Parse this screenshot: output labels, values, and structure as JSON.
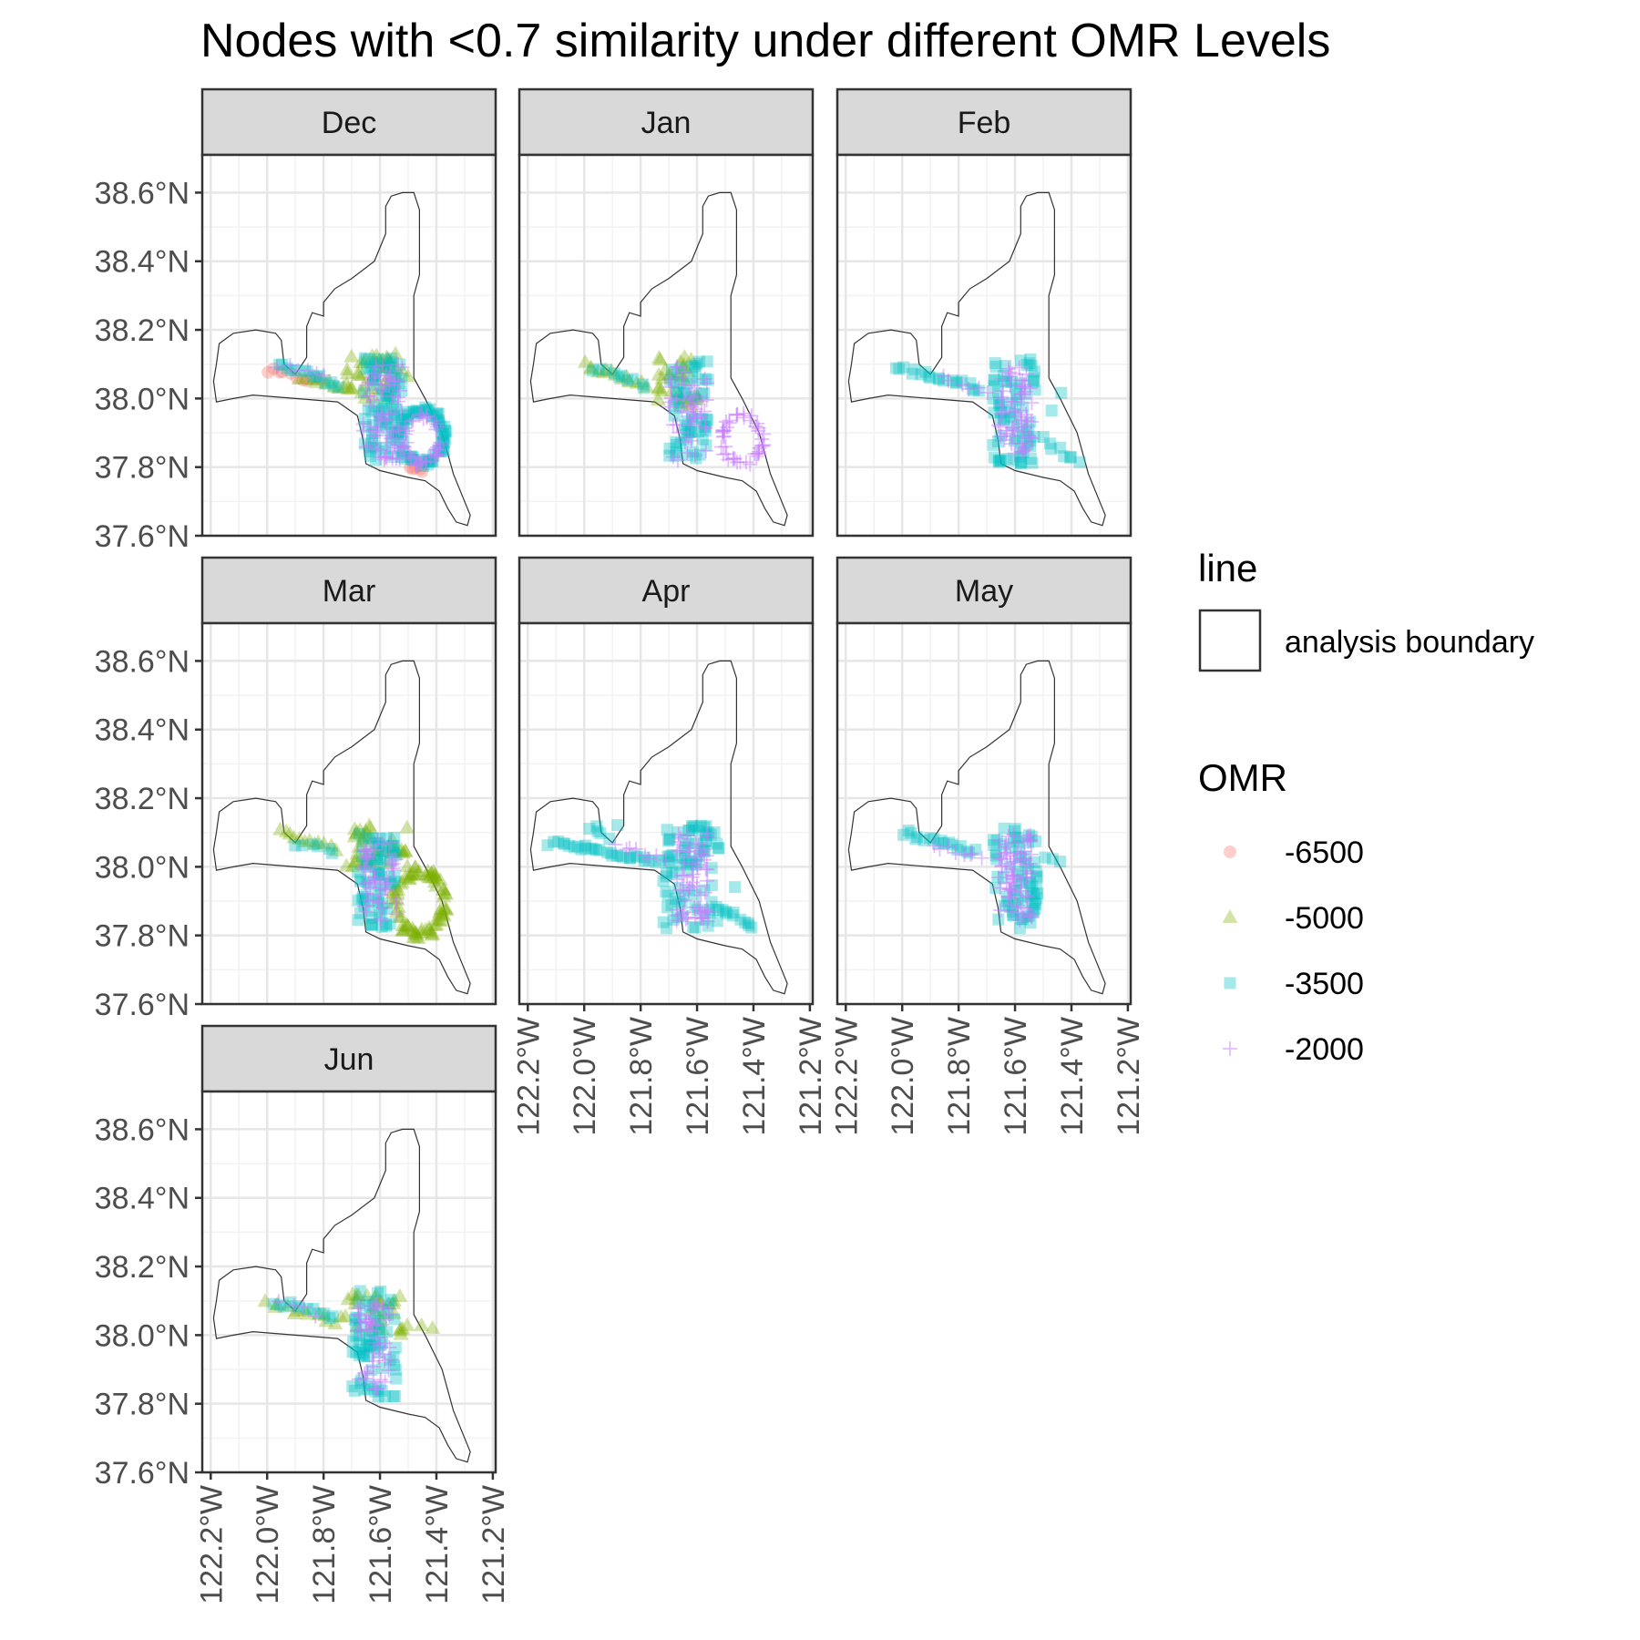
{
  "chart_data": {
    "type": "scatter",
    "title": "Nodes with <0.7 similarity under different OMR Levels",
    "panels": [
      "Dec",
      "Jan",
      "Feb",
      "Mar",
      "Apr",
      "May",
      "Jun"
    ],
    "x_ticks": [
      "122.2°W",
      "122.0°W",
      "121.8°W",
      "121.6°W",
      "121.4°W",
      "121.2°W"
    ],
    "y_ticks": [
      "38.6°N",
      "38.4°N",
      "38.2°N",
      "38.0°N",
      "37.8°N",
      "37.6°N"
    ],
    "xlim": [
      -122.23,
      -121.19
    ],
    "ylim": [
      37.6,
      38.71
    ],
    "legend": {
      "line_title": "line",
      "line_label": "analysis boundary",
      "omr_title": "OMR",
      "omr_entries": [
        {
          "label": "-6500",
          "shape": "circle",
          "color": "#F8766D"
        },
        {
          "label": "-5000",
          "shape": "triangle",
          "color": "#7CAE00"
        },
        {
          "label": "-3500",
          "shape": "square",
          "color": "#00BFC4"
        },
        {
          "label": "-2000",
          "shape": "plus",
          "color": "#C77CFF"
        }
      ]
    },
    "boundary": [
      [
        -121.95,
        38.17
      ],
      [
        -121.97,
        38.19
      ],
      [
        -122.04,
        38.2
      ],
      [
        -122.12,
        38.19
      ],
      [
        -122.17,
        38.16
      ],
      [
        -122.18,
        38.1
      ],
      [
        -122.19,
        38.05
      ],
      [
        -122.18,
        37.99
      ],
      [
        -122.12,
        38.0
      ],
      [
        -122.05,
        38.01
      ],
      [
        -121.9,
        38.0
      ],
      [
        -121.75,
        37.99
      ],
      [
        -121.68,
        37.95
      ],
      [
        -121.66,
        37.88
      ],
      [
        -121.65,
        37.81
      ],
      [
        -121.6,
        37.79
      ],
      [
        -121.5,
        37.77
      ],
      [
        -121.44,
        37.76
      ],
      [
        -121.39,
        37.73
      ],
      [
        -121.36,
        37.68
      ],
      [
        -121.33,
        37.64
      ],
      [
        -121.29,
        37.63
      ],
      [
        -121.28,
        37.66
      ],
      [
        -121.3,
        37.7
      ],
      [
        -121.34,
        37.78
      ],
      [
        -121.38,
        37.9
      ],
      [
        -121.44,
        38.0
      ],
      [
        -121.48,
        38.06
      ],
      [
        -121.48,
        38.16
      ],
      [
        -121.48,
        38.3
      ],
      [
        -121.46,
        38.36
      ],
      [
        -121.46,
        38.45
      ],
      [
        -121.46,
        38.55
      ],
      [
        -121.48,
        38.6
      ],
      [
        -121.52,
        38.6
      ],
      [
        -121.56,
        38.59
      ],
      [
        -121.58,
        38.56
      ],
      [
        -121.58,
        38.48
      ],
      [
        -121.62,
        38.4
      ],
      [
        -121.7,
        38.35
      ],
      [
        -121.76,
        38.32
      ],
      [
        -121.8,
        38.28
      ],
      [
        -121.8,
        38.24
      ],
      [
        -121.84,
        38.25
      ],
      [
        -121.86,
        38.21
      ],
      [
        -121.86,
        38.12
      ],
      [
        -121.9,
        38.07
      ],
      [
        -121.94,
        38.1
      ],
      [
        -121.95,
        38.17
      ]
    ],
    "clusters": {
      "Dec": [
        {
          "omr": "-6500",
          "shapes": [
            {
              "kind": "line",
              "x0": -122.0,
              "y0": 38.08,
              "x1": -121.82,
              "y1": 38.05,
              "n": 10
            },
            {
              "kind": "box",
              "x0": -121.5,
              "y0": 37.78,
              "x1": -121.44,
              "y1": 37.82,
              "n": 6
            }
          ]
        },
        {
          "omr": "-5000",
          "shapes": [
            {
              "kind": "line",
              "x0": -121.88,
              "y0": 38.06,
              "x1": -121.7,
              "y1": 38.03,
              "n": 12
            },
            {
              "kind": "box",
              "x0": -121.72,
              "y0": 38.0,
              "x1": -121.5,
              "y1": 38.13,
              "n": 40
            }
          ]
        },
        {
          "omr": "-3500",
          "shapes": [
            {
              "kind": "line",
              "x0": -121.96,
              "y0": 38.1,
              "x1": -121.74,
              "y1": 38.04,
              "n": 14
            },
            {
              "kind": "box",
              "x0": -121.66,
              "y0": 37.82,
              "x1": -121.52,
              "y1": 38.12,
              "n": 80
            },
            {
              "kind": "ring",
              "x0": -121.54,
              "y0": 37.8,
              "x1": -121.36,
              "y1": 37.98,
              "n": 70
            }
          ]
        },
        {
          "omr": "-2000",
          "shapes": [
            {
              "kind": "box",
              "x0": -121.66,
              "y0": 37.82,
              "x1": -121.52,
              "y1": 38.1,
              "n": 70
            },
            {
              "kind": "ring",
              "x0": -121.52,
              "y0": 37.8,
              "x1": -121.38,
              "y1": 37.96,
              "n": 40
            },
            {
              "kind": "line",
              "x0": -121.96,
              "y0": 38.1,
              "x1": -121.8,
              "y1": 38.06,
              "n": 6
            }
          ]
        }
      ],
      "Jan": [
        {
          "omr": "-5000",
          "shapes": [
            {
              "kind": "line",
              "x0": -122.0,
              "y0": 38.1,
              "x1": -121.78,
              "y1": 38.04,
              "n": 14
            },
            {
              "kind": "box",
              "x0": -121.74,
              "y0": 37.98,
              "x1": -121.58,
              "y1": 38.13,
              "n": 30
            }
          ]
        },
        {
          "omr": "-3500",
          "shapes": [
            {
              "kind": "line",
              "x0": -121.96,
              "y0": 38.09,
              "x1": -121.78,
              "y1": 38.04,
              "n": 10
            },
            {
              "kind": "box",
              "x0": -121.7,
              "y0": 37.82,
              "x1": -121.56,
              "y1": 38.12,
              "n": 60
            }
          ]
        },
        {
          "omr": "-2000",
          "shapes": [
            {
              "kind": "box",
              "x0": -121.7,
              "y0": 37.82,
              "x1": -121.56,
              "y1": 38.1,
              "n": 50
            },
            {
              "kind": "ring",
              "x0": -121.52,
              "y0": 37.8,
              "x1": -121.36,
              "y1": 37.96,
              "n": 45
            }
          ]
        }
      ],
      "Feb": [
        {
          "omr": "-3500",
          "shapes": [
            {
              "kind": "line",
              "x0": -122.02,
              "y0": 38.09,
              "x1": -121.72,
              "y1": 38.03,
              "n": 20
            },
            {
              "kind": "box",
              "x0": -121.68,
              "y0": 37.81,
              "x1": -121.52,
              "y1": 38.12,
              "n": 70
            },
            {
              "kind": "line",
              "x0": -121.5,
              "y0": 37.88,
              "x1": -121.38,
              "y1": 37.81,
              "n": 8
            },
            {
              "kind": "line",
              "x0": -121.48,
              "y0": 37.96,
              "x1": -121.44,
              "y1": 38.02,
              "n": 2
            }
          ]
        },
        {
          "omr": "-2000",
          "shapes": [
            {
              "kind": "box",
              "x0": -121.66,
              "y0": 37.84,
              "x1": -121.54,
              "y1": 38.1,
              "n": 60
            },
            {
              "kind": "line",
              "x0": -121.86,
              "y0": 38.06,
              "x1": -121.7,
              "y1": 38.02,
              "n": 6
            }
          ]
        }
      ],
      "Mar": [
        {
          "omr": "-5000",
          "shapes": [
            {
              "kind": "line",
              "x0": -121.96,
              "y0": 38.1,
              "x1": -121.76,
              "y1": 38.05,
              "n": 12
            },
            {
              "kind": "box",
              "x0": -121.72,
              "y0": 38.0,
              "x1": -121.5,
              "y1": 38.13,
              "n": 40
            },
            {
              "kind": "ring",
              "x0": -121.56,
              "y0": 37.79,
              "x1": -121.36,
              "y1": 38.0,
              "n": 80
            }
          ]
        },
        {
          "omr": "-3500",
          "shapes": [
            {
              "kind": "box",
              "x0": -121.68,
              "y0": 37.82,
              "x1": -121.54,
              "y1": 38.1,
              "n": 70
            },
            {
              "kind": "line",
              "x0": -121.9,
              "y0": 38.07,
              "x1": -121.76,
              "y1": 38.04,
              "n": 6
            }
          ]
        },
        {
          "omr": "-2000",
          "shapes": [
            {
              "kind": "box",
              "x0": -121.66,
              "y0": 37.84,
              "x1": -121.54,
              "y1": 38.08,
              "n": 50
            }
          ]
        }
      ],
      "Apr": [
        {
          "omr": "-3500",
          "shapes": [
            {
              "kind": "line",
              "x0": -122.12,
              "y0": 38.07,
              "x1": -121.74,
              "y1": 38.02,
              "n": 30
            },
            {
              "kind": "box",
              "x0": -122.0,
              "y0": 38.08,
              "x1": -121.88,
              "y1": 38.13,
              "n": 6
            },
            {
              "kind": "box",
              "x0": -121.72,
              "y0": 37.82,
              "x1": -121.52,
              "y1": 38.12,
              "n": 80
            },
            {
              "kind": "line",
              "x0": -121.54,
              "y0": 37.89,
              "x1": -121.4,
              "y1": 37.82,
              "n": 12
            },
            {
              "kind": "line",
              "x0": -121.46,
              "y0": 37.94,
              "x1": -121.46,
              "y1": 37.94,
              "n": 1
            }
          ]
        },
        {
          "omr": "-2000",
          "shapes": [
            {
              "kind": "box",
              "x0": -121.68,
              "y0": 37.84,
              "x1": -121.56,
              "y1": 38.1,
              "n": 60
            },
            {
              "kind": "line",
              "x0": -121.88,
              "y0": 38.06,
              "x1": -121.72,
              "y1": 38.02,
              "n": 8
            }
          ]
        }
      ],
      "May": [
        {
          "omr": "-3500",
          "shapes": [
            {
              "kind": "line",
              "x0": -122.0,
              "y0": 38.1,
              "x1": -121.74,
              "y1": 38.04,
              "n": 18
            },
            {
              "kind": "box",
              "x0": -121.68,
              "y0": 37.82,
              "x1": -121.52,
              "y1": 38.12,
              "n": 70
            },
            {
              "kind": "line",
              "x0": -121.5,
              "y0": 38.02,
              "x1": -121.44,
              "y1": 38.02,
              "n": 3
            }
          ]
        },
        {
          "omr": "-2000",
          "shapes": [
            {
              "kind": "box",
              "x0": -121.66,
              "y0": 37.84,
              "x1": -121.54,
              "y1": 38.1,
              "n": 70
            },
            {
              "kind": "line",
              "x0": -121.88,
              "y0": 38.06,
              "x1": -121.72,
              "y1": 38.03,
              "n": 8
            }
          ]
        }
      ],
      "Jun": [
        {
          "omr": "-5000",
          "shapes": [
            {
              "kind": "line",
              "x0": -122.0,
              "y0": 38.09,
              "x1": -121.76,
              "y1": 38.04,
              "n": 12
            },
            {
              "kind": "box",
              "x0": -121.74,
              "y0": 38.0,
              "x1": -121.52,
              "y1": 38.12,
              "n": 30
            },
            {
              "kind": "line",
              "x0": -121.5,
              "y0": 38.03,
              "x1": -121.42,
              "y1": 38.02,
              "n": 3
            }
          ]
        },
        {
          "omr": "-3500",
          "shapes": [
            {
              "kind": "line",
              "x0": -121.98,
              "y0": 38.1,
              "x1": -121.76,
              "y1": 38.05,
              "n": 12
            },
            {
              "kind": "box",
              "x0": -121.7,
              "y0": 37.82,
              "x1": -121.54,
              "y1": 38.13,
              "n": 70
            }
          ]
        },
        {
          "omr": "-2000",
          "shapes": [
            {
              "kind": "box",
              "x0": -121.68,
              "y0": 37.84,
              "x1": -121.56,
              "y1": 38.1,
              "n": 50
            },
            {
              "kind": "line",
              "x0": -121.96,
              "y0": 38.1,
              "x1": -121.82,
              "y1": 38.06,
              "n": 4
            }
          ]
        }
      ]
    }
  }
}
